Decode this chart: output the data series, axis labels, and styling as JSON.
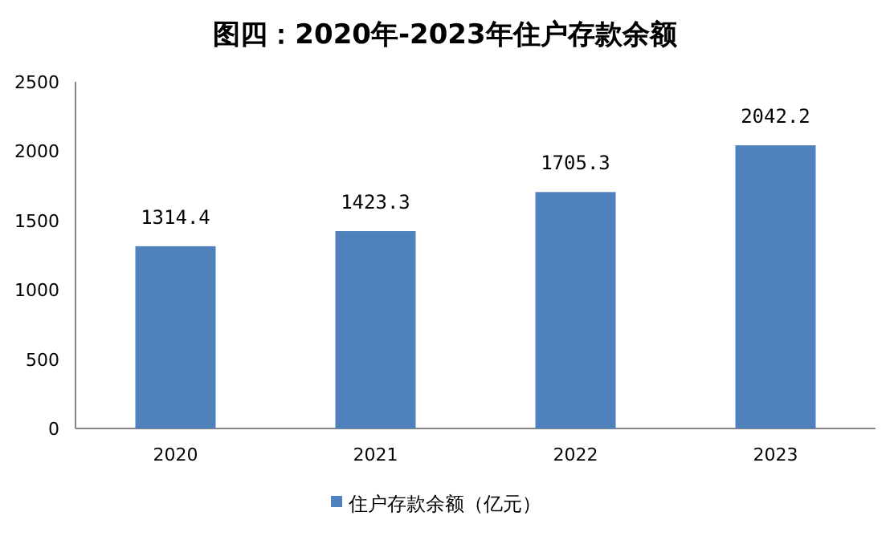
{
  "chart_data": {
    "type": "bar",
    "title": "图四：2020年-2023年住户存款余额",
    "categories": [
      "2020",
      "2021",
      "2022",
      "2023"
    ],
    "series": [
      {
        "name": "住户存款余额（亿元）",
        "color": "#4f81bd",
        "values": [
          1314.4,
          1423.3,
          1705.3,
          2042.2
        ]
      }
    ],
    "ylim": [
      0,
      2500
    ],
    "yticks": [
      0,
      500,
      1000,
      1500,
      2000,
      2500
    ],
    "data_labels": true,
    "legend": "bottom"
  }
}
